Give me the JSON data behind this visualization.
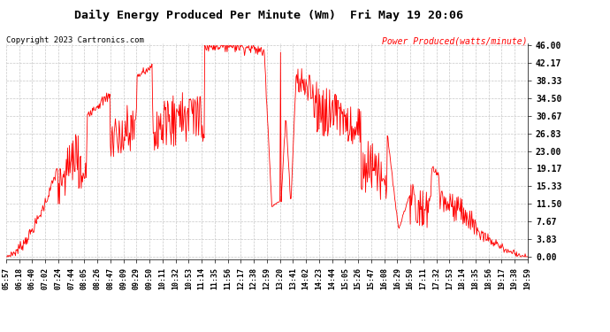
{
  "title": "Daily Energy Produced Per Minute (Wm)  Fri May 19 20:06",
  "copyright": "Copyright 2023 Cartronics.com",
  "legend_label": "Power Produced(watts/minute)",
  "ylabel_values": [
    0.0,
    3.83,
    7.67,
    11.5,
    15.33,
    19.17,
    23.0,
    26.83,
    30.67,
    34.5,
    38.33,
    42.17,
    46.0
  ],
  "ymax": 46.0,
  "ymin": 0.0,
  "line_color": "#FF0000",
  "bg_color": "#FFFFFF",
  "grid_color": "#C8C8C8",
  "title_color": "#000000",
  "copyright_color": "#000000",
  "legend_color": "#FF0000",
  "x_tick_labels": [
    "05:57",
    "06:18",
    "06:40",
    "07:02",
    "07:24",
    "07:44",
    "08:05",
    "08:26",
    "08:47",
    "09:09",
    "09:29",
    "09:50",
    "10:11",
    "10:32",
    "10:53",
    "11:14",
    "11:35",
    "11:56",
    "12:17",
    "12:38",
    "12:59",
    "13:20",
    "13:41",
    "14:02",
    "14:23",
    "14:44",
    "15:05",
    "15:26",
    "15:47",
    "16:08",
    "16:29",
    "16:50",
    "17:11",
    "17:32",
    "17:53",
    "18:14",
    "18:35",
    "18:56",
    "19:17",
    "19:38",
    "19:59"
  ]
}
